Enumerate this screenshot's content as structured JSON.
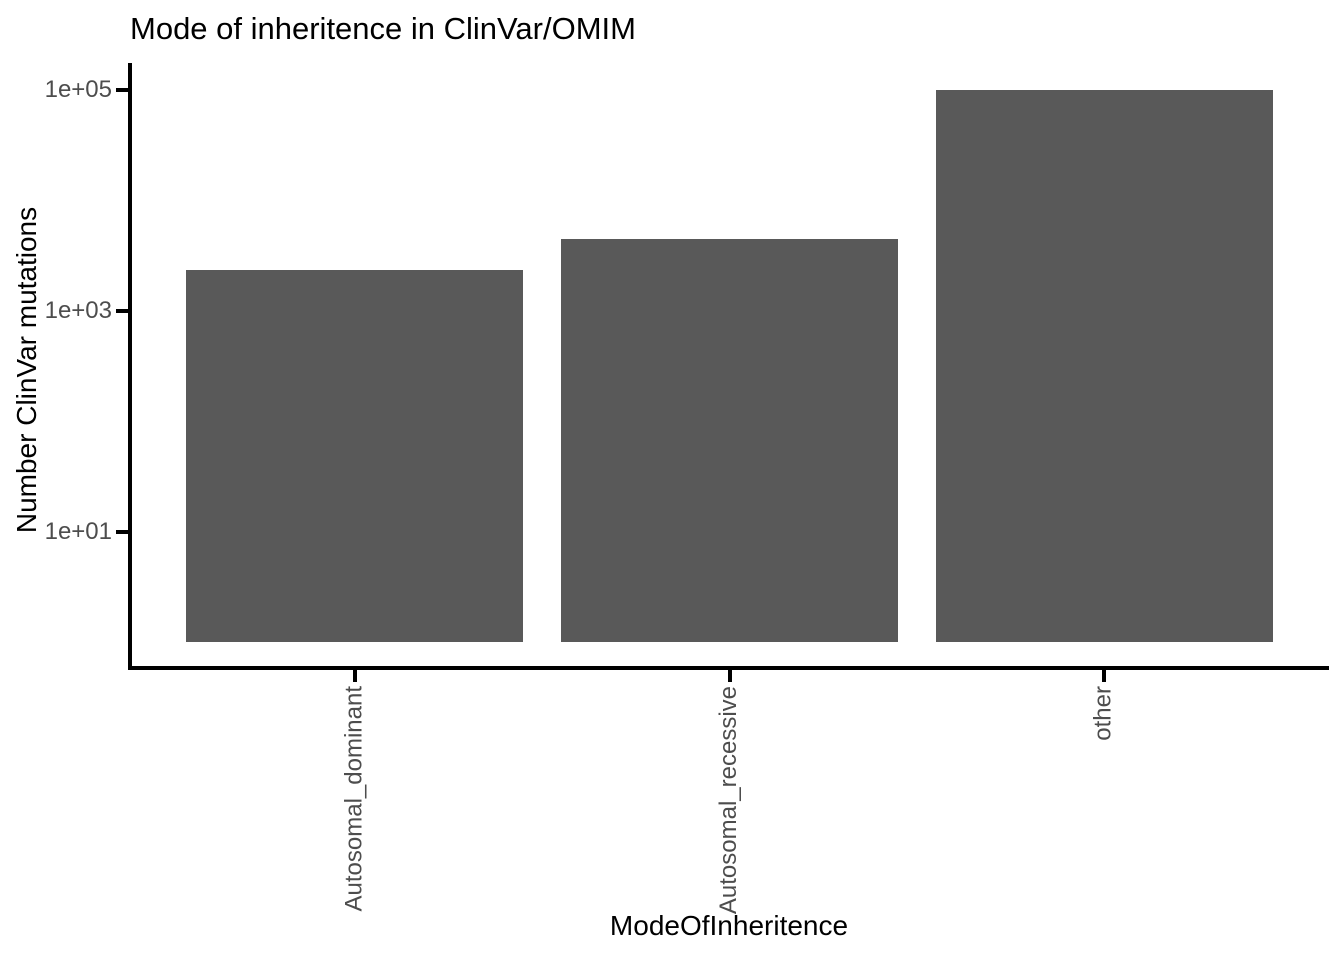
{
  "title": "Mode of inheritence in ClinVar/OMIM",
  "chart_data": {
    "type": "bar",
    "title": "Mode of inheritence in ClinVar/OMIM",
    "xlabel": "ModeOfInheritence",
    "ylabel": "Number ClinVar mutations",
    "categories": [
      "Autosomal_dominant",
      "Autosomal_recessive",
      "other"
    ],
    "values": [
      2350,
      4450,
      99000
    ],
    "y_scale": "log10",
    "y_ticks": [
      {
        "label": "1e+01",
        "value": 10
      },
      {
        "label": "1e+03",
        "value": 1000
      },
      {
        "label": "1e+05",
        "value": 100000
      }
    ],
    "bar_baseline_value": 1,
    "ylim_log10": [
      -0.25,
      5.25
    ],
    "grid": false,
    "legend": "none",
    "bar_color": "#595959",
    "axis_color": "#000000",
    "tick_label_color": "#4d4d4d",
    "background_color": "#ffffff"
  }
}
